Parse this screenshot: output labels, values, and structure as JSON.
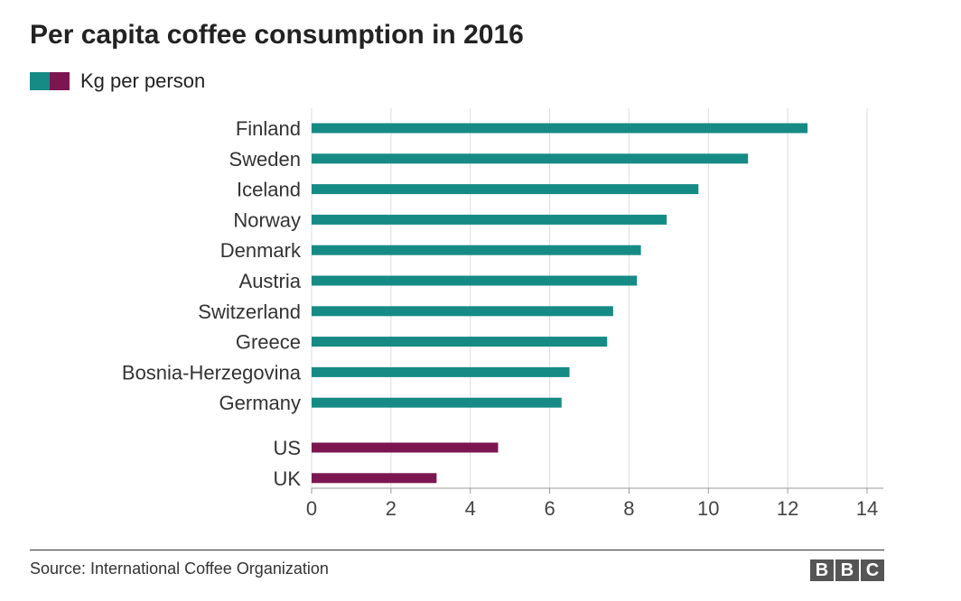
{
  "chart_data": {
    "type": "bar",
    "orientation": "horizontal",
    "title": "Per capita coffee consumption in 2016",
    "categories": [
      "Finland",
      "Sweden",
      "Iceland",
      "Norway",
      "Denmark",
      "Austria",
      "Switzerland",
      "Greece",
      "Bosnia-Herzegovina",
      "Germany",
      "US",
      "UK"
    ],
    "values": [
      12.5,
      11.0,
      9.75,
      8.95,
      8.3,
      8.2,
      7.6,
      7.45,
      6.5,
      6.3,
      4.7,
      3.15
    ],
    "bar_colors": [
      "#168b85",
      "#168b85",
      "#168b85",
      "#168b85",
      "#168b85",
      "#168b85",
      "#168b85",
      "#168b85",
      "#168b85",
      "#168b85",
      "#7c1650",
      "#7c1650"
    ],
    "group_gap_after_index": 9,
    "legend": {
      "label": "Kg per person",
      "colors": [
        "#168b85",
        "#7c1650"
      ],
      "placement": "top-left"
    },
    "xlim": [
      0,
      14
    ],
    "xticks": [
      "0",
      "2",
      "4",
      "6",
      "8",
      "10",
      "12",
      "14"
    ],
    "grid": true
  },
  "footer": {
    "source": "Source: International Coffee Organization",
    "logo_letters": [
      "B",
      "B",
      "C"
    ]
  }
}
